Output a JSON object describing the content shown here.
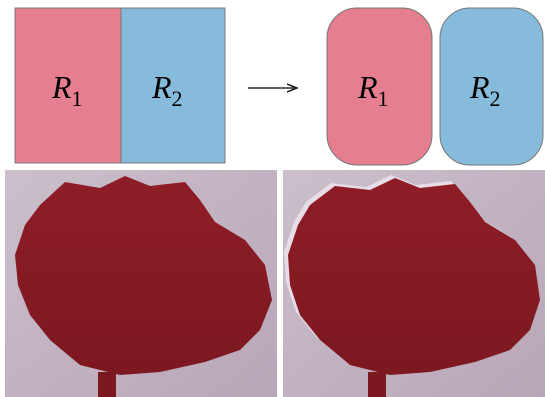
{
  "top_left": {
    "regions": [
      {
        "label": "R",
        "subscript": "1"
      },
      {
        "label": "R",
        "subscript": "2"
      }
    ]
  },
  "top_right": {
    "regions": [
      {
        "label": "R",
        "subscript": "1"
      },
      {
        "label": "R",
        "subscript": "2"
      }
    ]
  }
}
